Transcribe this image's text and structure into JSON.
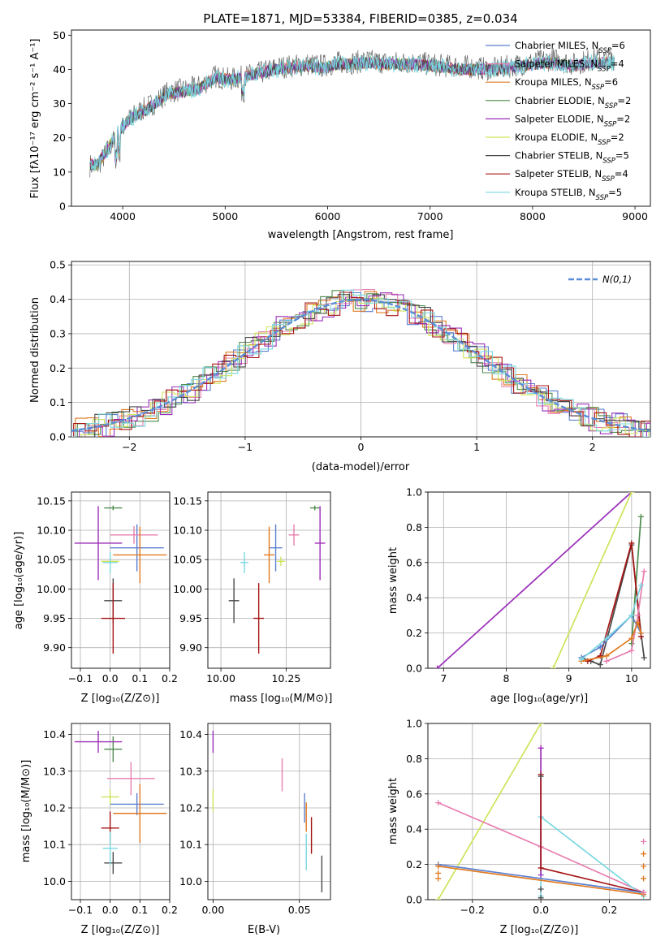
{
  "figure": {
    "title": "PLATE=1871, MJD=53384, FIBERID=0385, z=0.034"
  },
  "models": [
    {
      "name": "Chabrier MILES",
      "nssp": "6",
      "color": "#5b7fd0"
    },
    {
      "name": "Salpeter MILES",
      "nssp": "4",
      "color": "#e77fb0"
    },
    {
      "name": "Kroupa MILES",
      "nssp": "6",
      "color": "#e07a22"
    },
    {
      "name": "Chabrier ELODIE",
      "nssp": "2",
      "color": "#4e8a4e"
    },
    {
      "name": "Salpeter ELODIE",
      "nssp": "2",
      "color": "#9b2fb8"
    },
    {
      "name": "Kroupa ELODIE",
      "nssp": "2",
      "color": "#cfe35a"
    },
    {
      "name": "Chabrier STELIB",
      "nssp": "5",
      "color": "#4a4a4a"
    },
    {
      "name": "Salpeter STELIB",
      "nssp": "4",
      "color": "#a51414"
    },
    {
      "name": "Kroupa STELIB",
      "nssp": "5",
      "color": "#7ad8e0"
    }
  ],
  "nssp_label": "N",
  "nssp_sub": "SSP",
  "chart_data": [
    {
      "id": "spectrum",
      "type": "line",
      "xlabel": "wavelength [Angstrom, rest frame]",
      "ylabel": "Flux [fλ10⁻¹⁷ erg cm⁻² s⁻¹ A⁻¹]",
      "xlim": [
        3500,
        9150
      ],
      "ylim": [
        0,
        51.5
      ],
      "xticks": [
        4000,
        5000,
        6000,
        7000,
        8000,
        9000
      ],
      "yticks": [
        0,
        10,
        20,
        30,
        40,
        50
      ],
      "legend_position": "top-right",
      "data_x": [
        3680,
        3750,
        3850,
        3950,
        4050,
        4150,
        4300,
        4450,
        4600,
        4750,
        4900,
        5050,
        5200,
        5350,
        5500,
        5650,
        5800,
        5950,
        6100,
        6250,
        6400,
        6550,
        6700,
        6850,
        7000,
        7150,
        7300,
        7450,
        7600,
        7800,
        8000,
        8200,
        8400,
        8600,
        8800
      ],
      "data_y": [
        12,
        11.5,
        16,
        21,
        25,
        27.5,
        30,
        33.5,
        34,
        35,
        38,
        37,
        38,
        39,
        40.5,
        41,
        41.5,
        41,
        42,
        42,
        42.5,
        42,
        42,
        42,
        41.5,
        41,
        41,
        40.5,
        40,
        41,
        42,
        43,
        41.5,
        43,
        43
      ],
      "model_x": [
        3680,
        3750,
        3850,
        3950,
        4050,
        4150,
        4300,
        4450,
        4600,
        4750,
        4900,
        5050,
        5200,
        5350,
        5500,
        5650,
        5800,
        5950,
        6100,
        6250,
        6400,
        6550,
        6700,
        6850,
        7000,
        7150,
        7300,
        7450,
        7600,
        7800,
        8000,
        8200,
        8400,
        8600,
        8800
      ],
      "model_y": [
        12.5,
        12,
        16.5,
        21.5,
        25,
        27,
        29.5,
        33,
        33.5,
        34.5,
        37.5,
        37,
        38,
        39,
        40,
        40.5,
        41,
        40.5,
        41.5,
        41.5,
        42,
        41.5,
        41.5,
        41.5,
        41,
        40.5,
        40,
        40,
        40,
        40.5,
        41.5,
        42,
        41,
        42,
        42
      ],
      "cutoffs": [
        {
          "model": "Kroupa ELODIE",
          "x": 6810
        },
        {
          "model": "Salpeter STELIB",
          "x": 7420
        }
      ]
    },
    {
      "id": "residuals",
      "type": "histogram",
      "xlabel": "(data-model)/error",
      "ylabel": "Normed distribution",
      "xlim": [
        -2.5,
        2.5
      ],
      "ylim": [
        0,
        0.51
      ],
      "xticks": [
        -2,
        -1,
        0,
        1,
        2
      ],
      "yticks": [
        0.0,
        0.1,
        0.2,
        0.3,
        0.4,
        0.5
      ],
      "bin_width": 0.1,
      "reference_label": "N(0,1)",
      "reference_color": "#5b8ed6",
      "legend_position": "top-right"
    },
    {
      "id": "Z-age",
      "type": "scatter",
      "xlabel": "Z [log₁₀(Z/Z⊙)]",
      "ylabel": "age  [log₁₀(age/yr)]",
      "xlim": [
        -0.13,
        0.2
      ],
      "ylim": [
        9.865,
        10.165
      ],
      "xticks": [
        -0.1,
        0.0,
        0.1,
        0.2
      ],
      "yticks": [
        9.9,
        9.95,
        10.0,
        10.05,
        10.1,
        10.15
      ],
      "points": [
        {
          "model": "Chabrier MILES",
          "x": 0.09,
          "y": 10.07,
          "xerr": 0.09,
          "yerr": 0.04
        },
        {
          "model": "Salpeter MILES",
          "x": 0.08,
          "y": 10.092,
          "xerr": 0.08,
          "yerr": 0.015
        },
        {
          "model": "Kroupa MILES",
          "x": 0.1,
          "y": 10.058,
          "xerr": 0.09,
          "yerr": 0.048
        },
        {
          "model": "Chabrier ELODIE",
          "x": 0.01,
          "y": 10.138,
          "xerr": 0.03,
          "yerr": 0.004
        },
        {
          "model": "Salpeter ELODIE",
          "x": -0.04,
          "y": 10.078,
          "xerr": 0.08,
          "yerr": 0.063
        },
        {
          "model": "Kroupa ELODIE",
          "x": 0.0,
          "y": 10.047,
          "xerr": 0.03,
          "yerr": 0.008
        },
        {
          "model": "Chabrier STELIB",
          "x": 0.01,
          "y": 9.98,
          "xerr": 0.03,
          "yerr": 0.038
        },
        {
          "model": "Salpeter STELIB",
          "x": 0.01,
          "y": 9.95,
          "xerr": 0.04,
          "yerr": 0.06
        },
        {
          "model": "Kroupa STELIB",
          "x": 0.0,
          "y": 10.045,
          "xerr": 0.025,
          "yerr": 0.018
        }
      ]
    },
    {
      "id": "mass-age",
      "type": "scatter",
      "xlabel": "mass [log₁₀(M/M⊙)]",
      "ylabel": "",
      "xlim": [
        9.95,
        10.42
      ],
      "ylim": [
        9.865,
        10.165
      ],
      "xticks": [
        10.0,
        10.25
      ],
      "xticklabels": [
        "10.00",
        "10.25"
      ],
      "yticks": [
        9.9,
        9.95,
        10.0,
        10.05,
        10.1,
        10.15
      ],
      "points": [
        {
          "model": "Chabrier MILES",
          "x": 10.21,
          "y": 10.07,
          "xerr": 0.025,
          "yerr": 0.04
        },
        {
          "model": "Salpeter MILES",
          "x": 10.28,
          "y": 10.092,
          "xerr": 0.02,
          "yerr": 0.018
        },
        {
          "model": "Kroupa MILES",
          "x": 10.185,
          "y": 10.058,
          "xerr": 0.02,
          "yerr": 0.048
        },
        {
          "model": "Chabrier ELODIE",
          "x": 10.36,
          "y": 10.138,
          "xerr": 0.018,
          "yerr": 0.004
        },
        {
          "model": "Salpeter ELODIE",
          "x": 10.38,
          "y": 10.078,
          "xerr": 0.02,
          "yerr": 0.063
        },
        {
          "model": "Kroupa ELODIE",
          "x": 10.23,
          "y": 10.047,
          "xerr": 0.015,
          "yerr": 0.008
        },
        {
          "model": "Chabrier STELIB",
          "x": 10.05,
          "y": 9.98,
          "xerr": 0.02,
          "yerr": 0.038
        },
        {
          "model": "Salpeter STELIB",
          "x": 10.145,
          "y": 9.95,
          "xerr": 0.02,
          "yerr": 0.06
        },
        {
          "model": "Kroupa STELIB",
          "x": 10.09,
          "y": 10.045,
          "xerr": 0.015,
          "yerr": 0.018
        }
      ]
    },
    {
      "id": "age-weight",
      "type": "line",
      "xlabel": "age  [log₁₀(age/yr)]",
      "ylabel": "mass weight",
      "xlim": [
        6.75,
        10.3
      ],
      "ylim": [
        0,
        1.0
      ],
      "xticks": [
        7,
        8,
        9,
        10
      ],
      "yticks": [
        0.0,
        0.2,
        0.4,
        0.6,
        0.8,
        1.0
      ],
      "series": [
        {
          "model": "Salpeter ELODIE",
          "x": [
            6.9,
            10.0
          ],
          "y": [
            0.0,
            1.0
          ]
        },
        {
          "model": "Kroupa ELODIE",
          "x": [
            8.75,
            10.0
          ],
          "y": [
            0.0,
            1.0
          ]
        },
        {
          "model": "Chabrier ELODIE",
          "x": [
            10.0,
            10.15
          ],
          "y": [
            0.14,
            0.86
          ]
        },
        {
          "model": "Chabrier STELIB",
          "x": [
            9.2,
            9.35,
            9.5,
            10.0,
            10.15,
            10.2
          ],
          "y": [
            0.06,
            0.04,
            0.02,
            0.7,
            0.2,
            0.06
          ]
        },
        {
          "model": "Salpeter STELIB",
          "x": [
            9.3,
            9.5,
            10.0,
            10.15
          ],
          "y": [
            0.04,
            0.07,
            0.71,
            0.18
          ]
        },
        {
          "model": "Salpeter MILES",
          "x": [
            9.6,
            10.0,
            10.1,
            10.2
          ],
          "y": [
            0.04,
            0.1,
            0.3,
            0.55
          ]
        },
        {
          "model": "Chabrier MILES",
          "x": [
            9.2,
            9.5,
            10.0,
            10.15
          ],
          "y": [
            0.06,
            0.12,
            0.3,
            0.2
          ]
        },
        {
          "model": "Kroupa MILES",
          "x": [
            9.2,
            9.6,
            10.0,
            10.1,
            10.15
          ],
          "y": [
            0.04,
            0.07,
            0.17,
            0.26,
            0.2
          ]
        },
        {
          "model": "Kroupa STELIB",
          "x": [
            9.2,
            9.6,
            10.0,
            10.15
          ],
          "y": [
            0.05,
            0.17,
            0.3,
            0.47
          ]
        }
      ]
    },
    {
      "id": "Z-mass",
      "type": "scatter",
      "xlabel": "Z [log₁₀(Z/Z⊙)]",
      "ylabel": "mass [log₁₀(M/M⊙)]",
      "xlim": [
        -0.13,
        0.2
      ],
      "ylim": [
        9.95,
        10.43
      ],
      "xticks": [
        -0.1,
        0.0,
        0.1,
        0.2
      ],
      "yticks": [
        10.0,
        10.1,
        10.2,
        10.3,
        10.4
      ],
      "points": [
        {
          "model": "Chabrier MILES",
          "x": 0.09,
          "y": 10.21,
          "xerr": 0.09,
          "yerr": 0.03
        },
        {
          "model": "Salpeter MILES",
          "x": 0.07,
          "y": 10.28,
          "xerr": 0.08,
          "yerr": 0.045
        },
        {
          "model": "Kroupa MILES",
          "x": 0.1,
          "y": 10.185,
          "xerr": 0.09,
          "yerr": 0.08
        },
        {
          "model": "Chabrier ELODIE",
          "x": 0.01,
          "y": 10.36,
          "xerr": 0.03,
          "yerr": 0.035
        },
        {
          "model": "Salpeter ELODIE",
          "x": -0.04,
          "y": 10.38,
          "xerr": 0.08,
          "yerr": 0.03
        },
        {
          "model": "Kroupa ELODIE",
          "x": 0.0,
          "y": 10.23,
          "xerr": 0.03,
          "yerr": 0.02
        },
        {
          "model": "Chabrier STELIB",
          "x": 0.01,
          "y": 10.05,
          "xerr": 0.03,
          "yerr": 0.03
        },
        {
          "model": "Salpeter STELIB",
          "x": 0.0,
          "y": 10.145,
          "xerr": 0.03,
          "yerr": 0.045
        },
        {
          "model": "Kroupa STELIB",
          "x": 0.0,
          "y": 10.09,
          "xerr": 0.025,
          "yerr": 0.045
        }
      ]
    },
    {
      "id": "EBV-mass",
      "type": "scatter",
      "xlabel": "E(B-V)",
      "ylabel": "",
      "xlim": [
        -0.003,
        0.068
      ],
      "ylim": [
        9.95,
        10.43
      ],
      "xticks": [
        0.0,
        0.05
      ],
      "xticklabels": [
        "0.00",
        "0.05"
      ],
      "yticks": [
        10.0,
        10.1,
        10.2,
        10.3,
        10.4
      ],
      "points": [
        {
          "model": "Salpeter ELODIE",
          "x": 0.0,
          "y": 10.38,
          "xerr": 0,
          "yerr": 0.03
        },
        {
          "model": "Kroupa ELODIE",
          "x": 0.0,
          "y": 10.22,
          "xerr": 0,
          "yerr": 0.03
        },
        {
          "model": "Salpeter MILES",
          "x": 0.04,
          "y": 10.29,
          "xerr": 0,
          "yerr": 0.045
        },
        {
          "model": "Chabrier MILES",
          "x": 0.053,
          "y": 10.2,
          "xerr": 0,
          "yerr": 0.04
        },
        {
          "model": "Kroupa MILES",
          "x": 0.054,
          "y": 10.175,
          "xerr": 0,
          "yerr": 0.04
        },
        {
          "model": "Kroupa STELIB",
          "x": 0.054,
          "y": 10.08,
          "xerr": 0,
          "yerr": 0.05
        },
        {
          "model": "Salpeter STELIB",
          "x": 0.057,
          "y": 10.125,
          "xerr": 0,
          "yerr": 0.05
        },
        {
          "model": "Chabrier STELIB",
          "x": 0.063,
          "y": 10.02,
          "xerr": 0,
          "yerr": 0.05
        }
      ]
    },
    {
      "id": "Z-weight",
      "type": "line",
      "xlabel": "Z [log₁₀(Z/Z⊙)]",
      "ylabel": "mass weight",
      "xlim": [
        -0.33,
        0.32
      ],
      "ylim": [
        0,
        1.0
      ],
      "xticks": [
        -0.2,
        0.0,
        0.2
      ],
      "xticklabels": [
        "−0.2",
        "0.0",
        "0.2"
      ],
      "yticks": [
        0.0,
        0.2,
        0.4,
        0.6,
        0.8,
        1.0
      ],
      "series": [
        {
          "model": "Kroupa ELODIE",
          "x": [
            -0.3,
            0.0
          ],
          "y": [
            0.0,
            1.0
          ]
        },
        {
          "model": "Salpeter MILES",
          "x": [
            -0.3,
            0.0,
            0.3
          ],
          "y": [
            0.55,
            0.3,
            0.04
          ]
        },
        {
          "model": "Kroupa STELIB",
          "x": [
            0.0,
            0.0,
            0.3
          ],
          "y": [
            0.02,
            0.47,
            0.02
          ]
        },
        {
          "model": "Salpeter ELODIE",
          "x": [
            0.0,
            0.0
          ],
          "y": [
            0.14,
            0.86
          ]
        },
        {
          "model": "Salpeter STELIB",
          "x": [
            0.0,
            0.0,
            0.3
          ],
          "y": [
            0.71,
            0.18,
            0.04
          ]
        },
        {
          "model": "Chabrier MILES",
          "x": [
            -0.3,
            0.3
          ],
          "y": [
            0.2,
            0.04
          ]
        },
        {
          "model": "Kroupa MILES",
          "x": [
            -0.3,
            0.3
          ],
          "y": [
            0.19,
            0.03
          ]
        }
      ],
      "markers": [
        {
          "model": "Kroupa MILES",
          "x": -0.3,
          "y": [
            0.12,
            0.15,
            0.19
          ]
        },
        {
          "model": "Kroupa MILES",
          "x": 0.3,
          "y": [
            0.03,
            0.12,
            0.19,
            0.26
          ]
        },
        {
          "model": "Salpeter MILES",
          "x": 0.3,
          "y": [
            0.04,
            0.33
          ]
        },
        {
          "model": "Chabrier STELIB",
          "x": 0.0,
          "y": [
            0.01,
            0.06,
            0.7
          ]
        },
        {
          "model": "Salpeter ELODIE",
          "x": 0.0,
          "y": [
            0.86
          ]
        }
      ]
    }
  ]
}
